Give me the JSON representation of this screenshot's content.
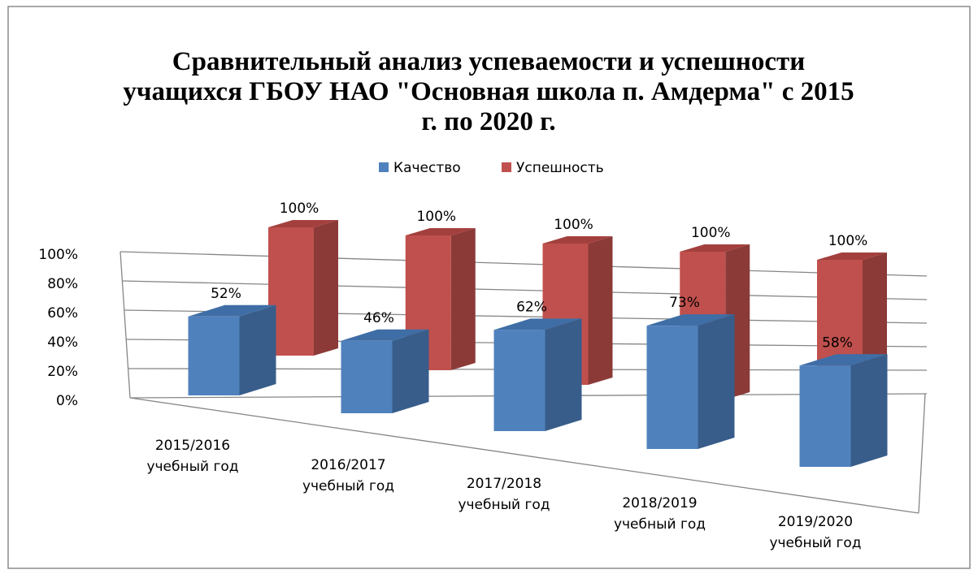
{
  "chart_data": {
    "type": "bar3d",
    "title": "Сравнительный анализ успеваемости и успешности учащихся ГБОУ НАО \"Основная школа п. Амдерма\" с 2015 г. по 2020 г.",
    "categories": [
      "2015/2016 учебный год",
      "2016/2017 учебный год",
      "2017/2018 учебный год",
      "2018/2019 учебный год",
      "2019/2020 учебный год"
    ],
    "series": [
      {
        "name": "Качество",
        "color": "#4f81bd",
        "values": [
          52,
          46,
          62,
          73,
          58
        ],
        "value_labels": [
          "52%",
          "46%",
          "62%",
          "73%",
          "58%"
        ]
      },
      {
        "name": "Успешность",
        "color": "#c0504d",
        "values": [
          100,
          100,
          100,
          100,
          100
        ],
        "value_labels": [
          "100%",
          "100%",
          "100%",
          "100%",
          "100%"
        ]
      }
    ],
    "ylim": [
      0,
      100
    ],
    "yticks": [
      {
        "value": 0,
        "label": "0%"
      },
      {
        "value": 20,
        "label": "20%"
      },
      {
        "value": 40,
        "label": "40%"
      },
      {
        "value": 60,
        "label": "60%"
      },
      {
        "value": 80,
        "label": "80%"
      },
      {
        "value": 100,
        "label": "100%"
      }
    ],
    "grid": true,
    "legend": "top"
  }
}
